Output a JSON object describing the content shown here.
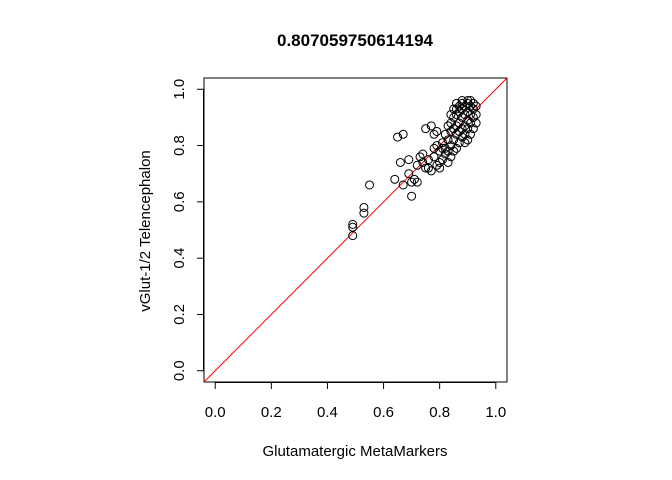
{
  "chart_data": {
    "type": "scatter",
    "title": "0.807059750614194",
    "xlabel": "Glutamatergic MetaMarkers",
    "ylabel": "vGlut-1/2 Telencephalon",
    "xlim": [
      -0.04,
      1.04
    ],
    "ylim": [
      -0.04,
      1.04
    ],
    "xticks": [
      0.0,
      0.2,
      0.4,
      0.6,
      0.8,
      1.0
    ],
    "xtick_labels": [
      "0.0",
      "0.2",
      "0.4",
      "0.6",
      "0.8",
      "1.0"
    ],
    "yticks": [
      0.0,
      0.2,
      0.4,
      0.6,
      0.8,
      1.0
    ],
    "ytick_labels": [
      "0.0",
      "0.2",
      "0.4",
      "0.6",
      "0.8",
      "1.0"
    ],
    "grid": false,
    "reference_line": {
      "type": "identity",
      "intercept": 0,
      "slope": 1,
      "color": "#ff0000"
    },
    "marker": {
      "shape": "open-circle",
      "color": "#000000"
    },
    "points": [
      [
        0.49,
        0.48
      ],
      [
        0.49,
        0.51
      ],
      [
        0.49,
        0.52
      ],
      [
        0.53,
        0.56
      ],
      [
        0.53,
        0.58
      ],
      [
        0.55,
        0.66
      ],
      [
        0.64,
        0.68
      ],
      [
        0.65,
        0.83
      ],
      [
        0.67,
        0.84
      ],
      [
        0.66,
        0.74
      ],
      [
        0.67,
        0.66
      ],
      [
        0.69,
        0.7
      ],
      [
        0.69,
        0.75
      ],
      [
        0.7,
        0.62
      ],
      [
        0.7,
        0.67
      ],
      [
        0.71,
        0.68
      ],
      [
        0.72,
        0.67
      ],
      [
        0.72,
        0.73
      ],
      [
        0.73,
        0.76
      ],
      [
        0.74,
        0.74
      ],
      [
        0.75,
        0.72
      ],
      [
        0.75,
        0.86
      ],
      [
        0.76,
        0.75
      ],
      [
        0.77,
        0.71
      ],
      [
        0.77,
        0.87
      ],
      [
        0.78,
        0.76
      ],
      [
        0.78,
        0.84
      ],
      [
        0.79,
        0.73
      ],
      [
        0.79,
        0.85
      ],
      [
        0.8,
        0.72
      ],
      [
        0.8,
        0.74
      ],
      [
        0.8,
        0.78
      ],
      [
        0.81,
        0.75
      ],
      [
        0.81,
        0.81
      ],
      [
        0.82,
        0.77
      ],
      [
        0.82,
        0.79
      ],
      [
        0.83,
        0.74
      ],
      [
        0.83,
        0.78
      ],
      [
        0.83,
        0.82
      ],
      [
        0.84,
        0.76
      ],
      [
        0.84,
        0.8
      ],
      [
        0.84,
        0.85
      ],
      [
        0.84,
        0.88
      ],
      [
        0.85,
        0.78
      ],
      [
        0.85,
        0.82
      ],
      [
        0.85,
        0.86
      ],
      [
        0.85,
        0.9
      ],
      [
        0.86,
        0.79
      ],
      [
        0.86,
        0.84
      ],
      [
        0.86,
        0.87
      ],
      [
        0.86,
        0.91
      ],
      [
        0.86,
        0.93
      ],
      [
        0.87,
        0.81
      ],
      [
        0.87,
        0.85
      ],
      [
        0.87,
        0.88
      ],
      [
        0.87,
        0.92
      ],
      [
        0.87,
        0.94
      ],
      [
        0.88,
        0.83
      ],
      [
        0.88,
        0.86
      ],
      [
        0.88,
        0.9
      ],
      [
        0.88,
        0.93
      ],
      [
        0.88,
        0.95
      ],
      [
        0.89,
        0.81
      ],
      [
        0.89,
        0.84
      ],
      [
        0.89,
        0.87
      ],
      [
        0.89,
        0.91
      ],
      [
        0.89,
        0.94
      ],
      [
        0.9,
        0.82
      ],
      [
        0.9,
        0.86
      ],
      [
        0.9,
        0.89
      ],
      [
        0.9,
        0.92
      ],
      [
        0.9,
        0.95
      ],
      [
        0.91,
        0.84
      ],
      [
        0.91,
        0.88
      ],
      [
        0.91,
        0.91
      ],
      [
        0.91,
        0.94
      ],
      [
        0.92,
        0.86
      ],
      [
        0.92,
        0.9
      ],
      [
        0.92,
        0.93
      ],
      [
        0.92,
        0.95
      ],
      [
        0.93,
        0.88
      ],
      [
        0.93,
        0.91
      ],
      [
        0.93,
        0.94
      ],
      [
        0.86,
        0.95
      ],
      [
        0.88,
        0.96
      ],
      [
        0.9,
        0.96
      ],
      [
        0.91,
        0.96
      ],
      [
        0.85,
        0.93
      ],
      [
        0.84,
        0.91
      ],
      [
        0.83,
        0.87
      ],
      [
        0.82,
        0.84
      ],
      [
        0.81,
        0.79
      ],
      [
        0.79,
        0.8
      ],
      [
        0.78,
        0.79
      ],
      [
        0.76,
        0.72
      ],
      [
        0.74,
        0.77
      ]
    ]
  }
}
